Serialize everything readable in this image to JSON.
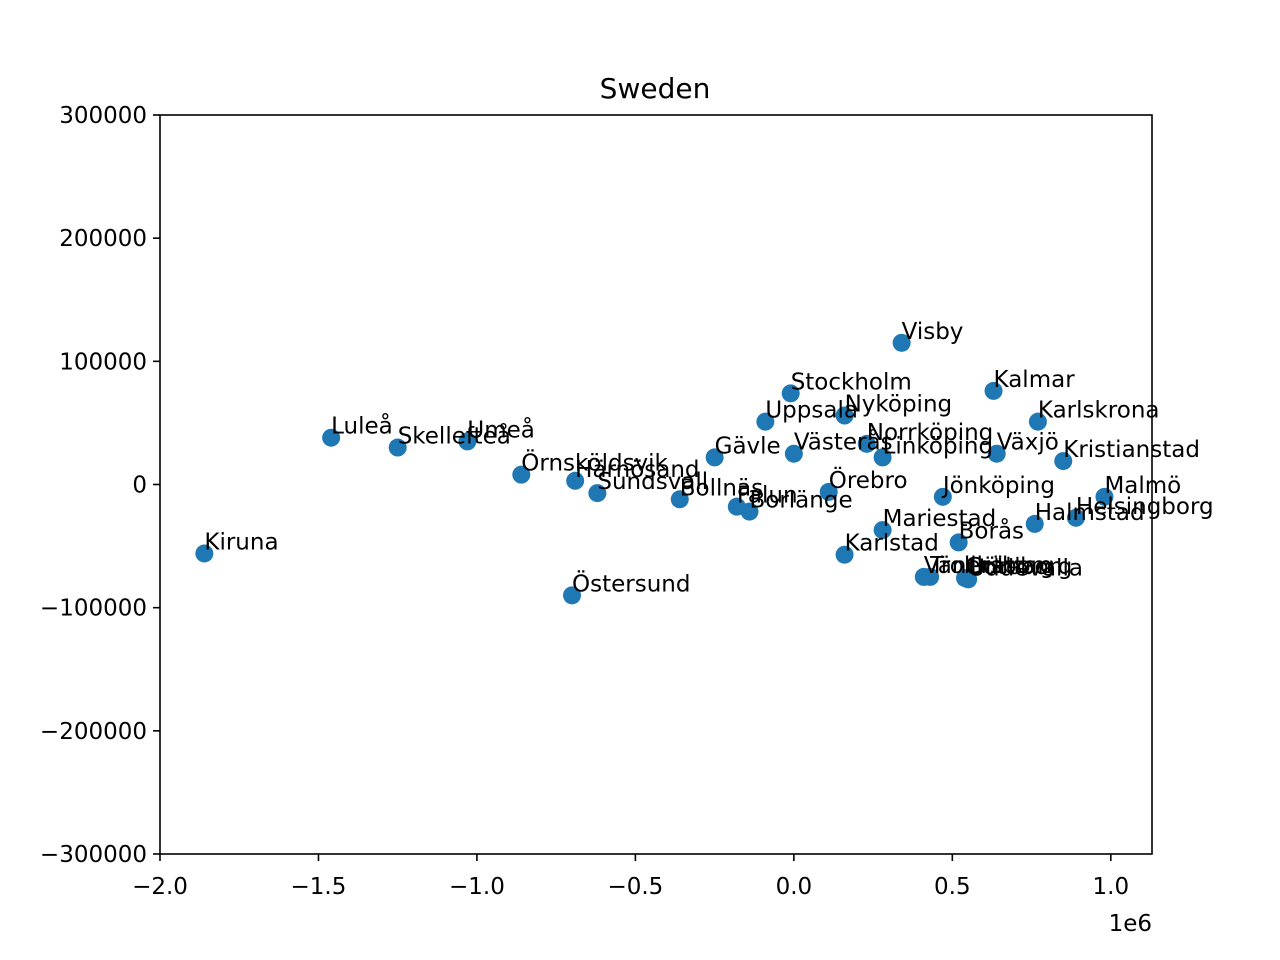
{
  "chart_data": {
    "type": "scatter",
    "title": "Sweden",
    "xlabel": "",
    "ylabel": "",
    "x_offset_label": "1e6",
    "xlim": [
      -2000000,
      1130000
    ],
    "ylim": [
      -300000,
      300000
    ],
    "grid": false,
    "legend": "none",
    "color": "#1f77b4",
    "xticks": [
      {
        "value": -2000000,
        "label": "−2.0"
      },
      {
        "value": -1500000,
        "label": "−1.5"
      },
      {
        "value": -1000000,
        "label": "−1.0"
      },
      {
        "value": -500000,
        "label": "−0.5"
      },
      {
        "value": 0,
        "label": "0.0"
      },
      {
        "value": 500000,
        "label": "0.5"
      },
      {
        "value": 1000000,
        "label": "1.0"
      }
    ],
    "yticks": [
      {
        "value": -300000,
        "label": "−300000"
      },
      {
        "value": -200000,
        "label": "−200000"
      },
      {
        "value": -100000,
        "label": "−100000"
      },
      {
        "value": 0,
        "label": "0"
      },
      {
        "value": 100000,
        "label": "100000"
      },
      {
        "value": 200000,
        "label": "200000"
      },
      {
        "value": 300000,
        "label": "300000"
      }
    ],
    "points": [
      {
        "name": "Kiruna",
        "x": -1860000,
        "y": -56000
      },
      {
        "name": "Luleå",
        "x": -1460000,
        "y": 38000
      },
      {
        "name": "Skellefteå",
        "x": -1250000,
        "y": 30000
      },
      {
        "name": "Umeå",
        "x": -1030000,
        "y": 35000
      },
      {
        "name": "Örnsköldsvik",
        "x": -860000,
        "y": 8000
      },
      {
        "name": "Härnösand",
        "x": -690000,
        "y": 3000
      },
      {
        "name": "Sundsvall",
        "x": -620000,
        "y": -7000
      },
      {
        "name": "Östersund",
        "x": -700000,
        "y": -90000
      },
      {
        "name": "Bollnäs",
        "x": -360000,
        "y": -12000
      },
      {
        "name": "Gävle",
        "x": -250000,
        "y": 22000
      },
      {
        "name": "Falun",
        "x": -180000,
        "y": -18000
      },
      {
        "name": "Borlänge",
        "x": -140000,
        "y": -22000
      },
      {
        "name": "Uppsala",
        "x": -90000,
        "y": 51000
      },
      {
        "name": "Stockholm",
        "x": -10000,
        "y": 74000
      },
      {
        "name": "Västerås",
        "x": 0,
        "y": 25000
      },
      {
        "name": "Örebro",
        "x": 110000,
        "y": -6000
      },
      {
        "name": "Nyköping",
        "x": 160000,
        "y": 56000
      },
      {
        "name": "Norrköping",
        "x": 230000,
        "y": 33000
      },
      {
        "name": "Linköping",
        "x": 280000,
        "y": 22000
      },
      {
        "name": "Karlstad",
        "x": 160000,
        "y": -57000
      },
      {
        "name": "Mariestad",
        "x": 280000,
        "y": -37000
      },
      {
        "name": "Visby",
        "x": 340000,
        "y": 115000
      },
      {
        "name": "Jönköping",
        "x": 470000,
        "y": -10000
      },
      {
        "name": "Borås",
        "x": 520000,
        "y": -47000
      },
      {
        "name": "Vänersborg",
        "x": 410000,
        "y": -75000
      },
      {
        "name": "Trollhättan",
        "x": 430000,
        "y": -75000
      },
      {
        "name": "Göteborg",
        "x": 540000,
        "y": -76000
      },
      {
        "name": "Uddevalla",
        "x": 550000,
        "y": -77000
      },
      {
        "name": "Kalmar",
        "x": 630000,
        "y": 76000
      },
      {
        "name": "Växjö",
        "x": 640000,
        "y": 25000
      },
      {
        "name": "Karlskrona",
        "x": 770000,
        "y": 51000
      },
      {
        "name": "Kristianstad",
        "x": 850000,
        "y": 19000
      },
      {
        "name": "Halmstad",
        "x": 760000,
        "y": -32000
      },
      {
        "name": "Helsingborg",
        "x": 890000,
        "y": -27000
      },
      {
        "name": "Malmö",
        "x": 980000,
        "y": -10000
      }
    ]
  }
}
